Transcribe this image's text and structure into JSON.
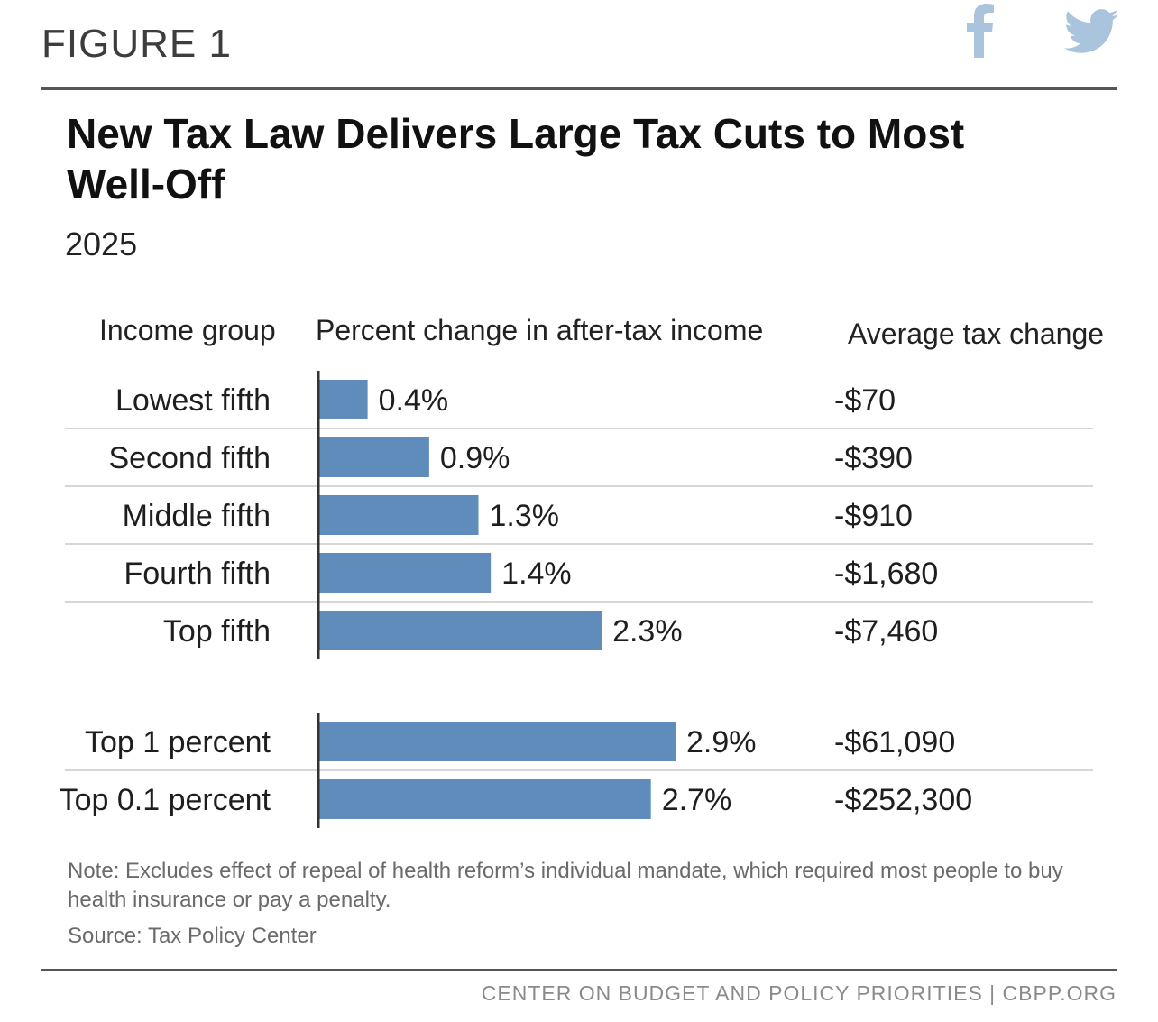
{
  "figure_label": "FIGURE 1",
  "social": {
    "facebook_icon": "facebook-icon",
    "twitter_icon": "twitter-icon",
    "icon_color": "#a9c4dc"
  },
  "headers": {
    "income": "Income group",
    "pct": "Percent change in after-tax income",
    "avg": "Average tax change"
  },
  "note": "Note: Excludes effect of repeal of health reform’s individual mandate, which required most people to buy health insurance or pay a penalty.",
  "source": "Source: Tax Policy Center",
  "footer": "CENTER ON BUDGET AND POLICY PRIORITIES | CBPP.ORG",
  "colors": {
    "bar": "#5f8cba",
    "divider": "#d6d6d6",
    "axis": "#333333"
  },
  "chart_data": {
    "type": "bar",
    "orientation": "horizontal",
    "title": "New Tax Law Delivers Large Tax Cuts to Most Well-Off",
    "subtitle": "2025",
    "xlim": [
      0,
      2.9
    ],
    "groups": [
      {
        "rows": [
          {
            "category": "Lowest fifth",
            "value": 0.4,
            "value_label": "0.4%",
            "avg_tax_change": "-$70"
          },
          {
            "category": "Second fifth",
            "value": 0.9,
            "value_label": "0.9%",
            "avg_tax_change": "-$390"
          },
          {
            "category": "Middle fifth",
            "value": 1.3,
            "value_label": "1.3%",
            "avg_tax_change": "-$910"
          },
          {
            "category": "Fourth fifth",
            "value": 1.4,
            "value_label": "1.4%",
            "avg_tax_change": "-$1,680"
          },
          {
            "category": "Top fifth",
            "value": 2.3,
            "value_label": "2.3%",
            "avg_tax_change": "-$7,460"
          }
        ]
      },
      {
        "rows": [
          {
            "category": "Top 1 percent",
            "value": 2.9,
            "value_label": "2.9%",
            "avg_tax_change": "-$61,090"
          },
          {
            "category": "Top 0.1 percent",
            "value": 2.7,
            "value_label": "2.7%",
            "avg_tax_change": "-$252,300"
          }
        ]
      }
    ]
  }
}
